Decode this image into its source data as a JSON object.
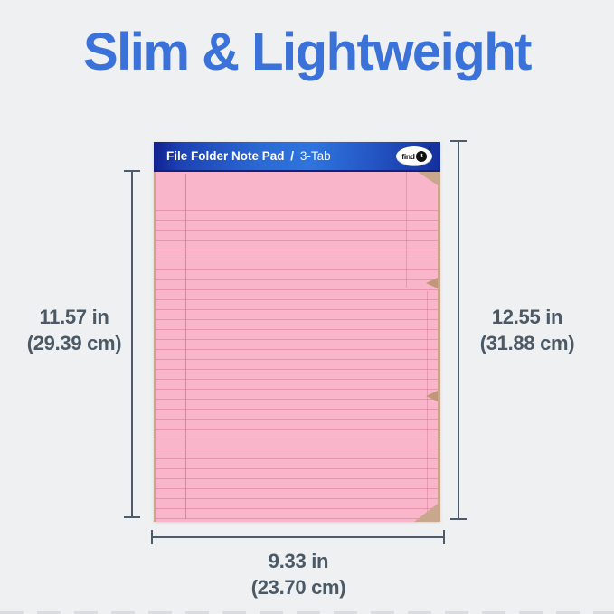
{
  "title": "Slim & Lightweight",
  "pad": {
    "header_label": "File Folder Note Pad",
    "header_sep": "/",
    "header_tab": "3-Tab",
    "brand_find": "find",
    "brand_it": "it",
    "brand_reg": "®"
  },
  "measurements": {
    "left": {
      "inches": "11.57 in",
      "cm": "(29.39 cm)"
    },
    "right": {
      "inches": "12.55 in",
      "cm": "(31.88 cm)"
    },
    "bottom": {
      "inches": "9.33 in",
      "cm": "(23.70 cm)"
    }
  },
  "colors": {
    "background": "#eef0f2",
    "title_blue": "#3b72d9",
    "header_blue_dark": "#101f8e",
    "header_blue_light": "#2f74de",
    "sheet_pink": "#f9b5c9",
    "rule_pink": "#e288a6",
    "kraft_tan": "#c9a78c",
    "measure_gray": "#4d5b6b",
    "label_gray": "#4b5866"
  }
}
